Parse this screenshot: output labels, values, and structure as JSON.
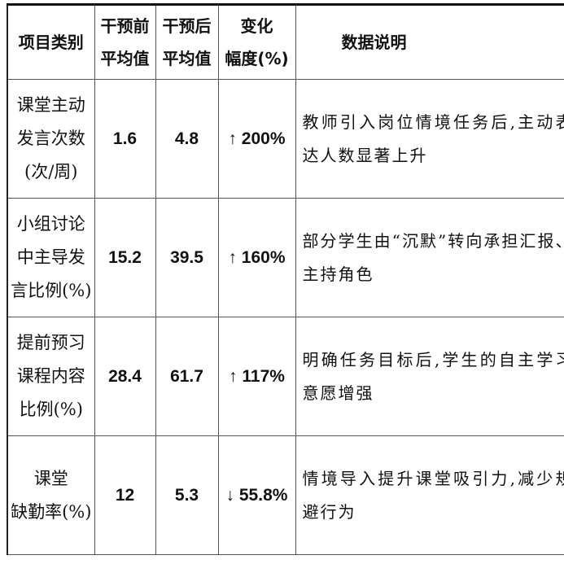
{
  "headers": [
    {
      "lines": [
        "项目类别"
      ]
    },
    {
      "lines": [
        "干预前",
        "平均值"
      ]
    },
    {
      "lines": [
        "干预后",
        "平均值"
      ]
    },
    {
      "lines": [
        "变化",
        "幅度(%)"
      ]
    },
    {
      "lines": [
        "数据说明"
      ]
    }
  ],
  "rows": [
    {
      "category": [
        "课堂主动",
        "发言次数",
        "(次/周)"
      ],
      "before": "1.6",
      "after": "4.8",
      "change": "↑ 200%",
      "note": "教师引入岗位情境任务后,主动表达人数显著上升"
    },
    {
      "category": [
        "小组讨论",
        "中主导发",
        "言比例(%)"
      ],
      "before": "15.2",
      "after": "39.5",
      "change": "↑ 160%",
      "note": "部分学生由“沉默”转向承担汇报、主持角色"
    },
    {
      "category": [
        "提前预习",
        "课程内容",
        "比例(%)"
      ],
      "before": "28.4",
      "after": "61.7",
      "change": "↑ 117%",
      "note": "明确任务目标后,学生的自主学习意愿增强"
    },
    {
      "category": [
        "课堂",
        "缺勤率(%)"
      ],
      "before": "12",
      "after": "5.3",
      "change": "↓ 55.8%",
      "note": "情境导入提升课堂吸引力,减少规避行为"
    }
  ]
}
